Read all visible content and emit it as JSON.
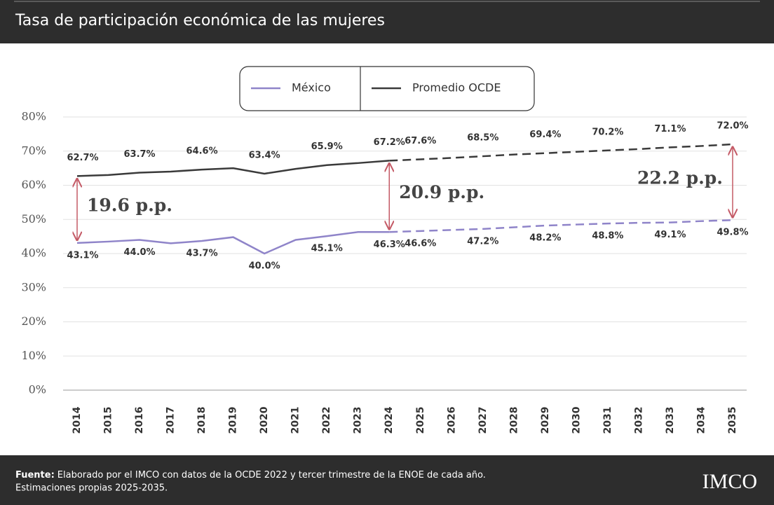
{
  "chart_data": {
    "type": "line",
    "title": "Tasa de participación económica de las mujeres",
    "categories": [
      "2014",
      "2015",
      "2016",
      "2017",
      "2018",
      "2019",
      "2020",
      "2021",
      "2022",
      "2023",
      "2024",
      "2025",
      "2026",
      "2027",
      "2028",
      "2029",
      "2030",
      "2031",
      "2032",
      "2033",
      "2034",
      "2035"
    ],
    "projection_from": "2024",
    "series": [
      {
        "name": "México",
        "color": "#8f84c9",
        "values": [
          43.1,
          43.5,
          44.0,
          43.0,
          43.7,
          44.8,
          40.0,
          44.0,
          45.1,
          46.3,
          46.3,
          46.6,
          46.9,
          47.2,
          47.7,
          48.2,
          48.5,
          48.8,
          49.0,
          49.1,
          49.5,
          49.8
        ],
        "value_labels": [
          "43.1%",
          null,
          "44.0%",
          null,
          "43.7%",
          null,
          "40.0%",
          null,
          "45.1%",
          null,
          "46.3%",
          "46.6%",
          null,
          "47.2%",
          null,
          "48.2%",
          null,
          "48.8%",
          null,
          "49.1%",
          null,
          "49.8%"
        ]
      },
      {
        "name": "Promedio OCDE",
        "color": "#3a3a3a",
        "values": [
          62.7,
          63.0,
          63.7,
          64.0,
          64.6,
          65.0,
          63.4,
          64.8,
          65.9,
          66.5,
          67.2,
          67.6,
          68.0,
          68.5,
          69.0,
          69.4,
          69.8,
          70.2,
          70.6,
          71.1,
          71.5,
          72.0
        ],
        "value_labels": [
          "62.7%",
          null,
          "63.7%",
          null,
          "64.6%",
          null,
          "63.4%",
          null,
          "65.9%",
          null,
          "67.2%",
          "67.6%",
          null,
          "68.5%",
          null,
          "69.4%",
          null,
          "70.2%",
          null,
          "71.1%",
          null,
          "72.0%"
        ]
      }
    ],
    "ylim": [
      0,
      80
    ],
    "yticks": [
      {
        "value": 0,
        "label": "0%"
      },
      {
        "value": 10,
        "label": "10%"
      },
      {
        "value": 20,
        "label": "20%"
      },
      {
        "value": 30,
        "label": "30%"
      },
      {
        "value": 40,
        "label": "40%"
      },
      {
        "value": 50,
        "label": "50%"
      },
      {
        "value": 60,
        "label": "60%"
      },
      {
        "value": 70,
        "label": "70%"
      },
      {
        "value": 80,
        "label": "80%"
      }
    ],
    "grid": true,
    "annotations": [
      {
        "text": "19.6 p.p.",
        "x": "2014"
      },
      {
        "text": "20.9 p.p.",
        "x": "2024"
      },
      {
        "text": "22.2 p.p.",
        "x": "2035"
      }
    ],
    "source_label": "Fuente:",
    "source": "Elaborado por el IMCO con datos de la OCDE 2022 y tercer trimestre de la ENOE de cada año.",
    "note": "Estimaciones propias 2025-2035.",
    "logo": "IMCO"
  }
}
